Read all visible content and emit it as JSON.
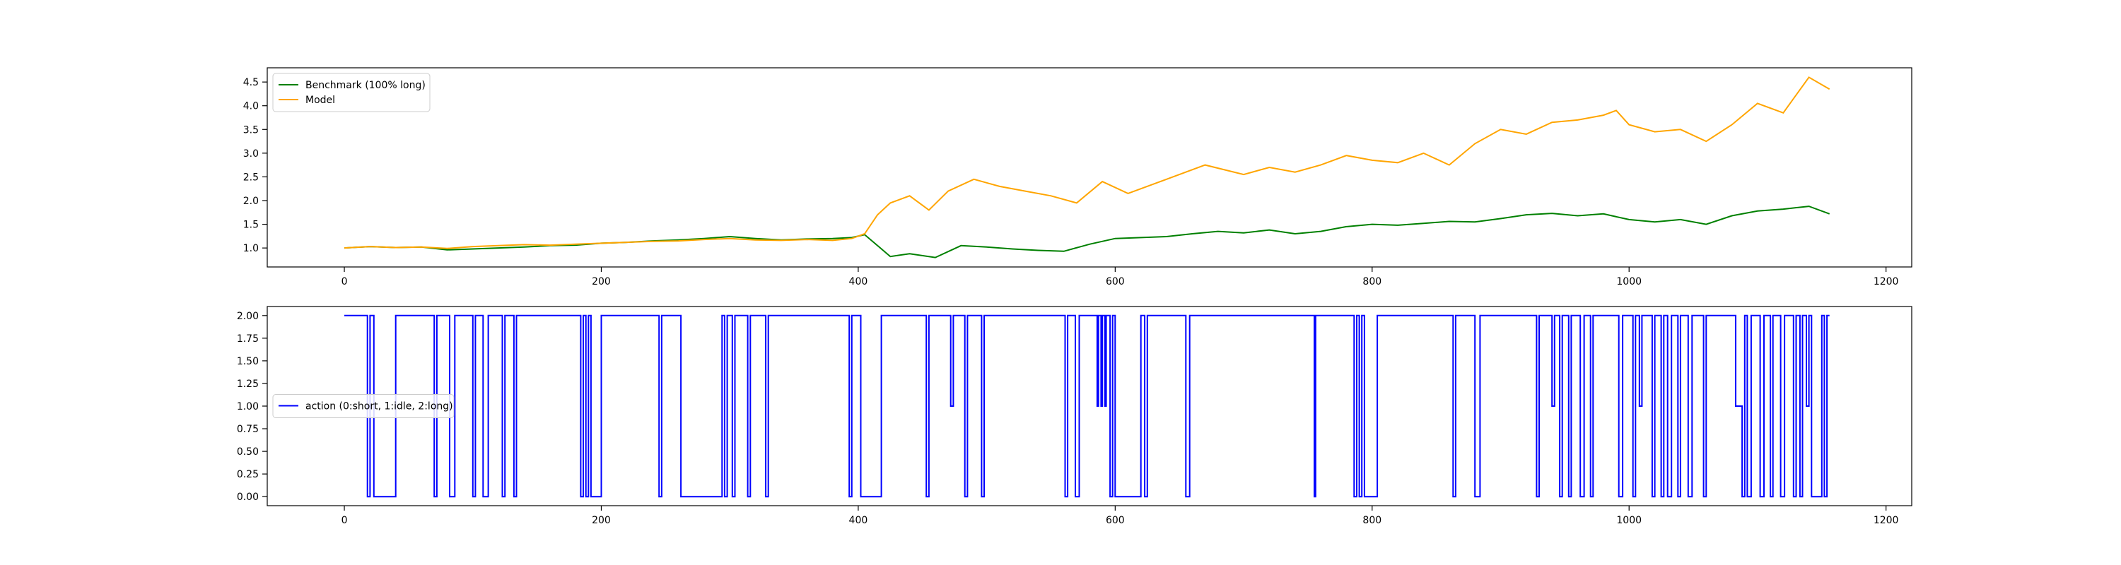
{
  "chart_data": [
    {
      "type": "line",
      "title": "",
      "xlabel": "",
      "ylabel": "",
      "xlim": [
        -60,
        1220
      ],
      "ylim": [
        0.6,
        4.8
      ],
      "xticks": [
        0,
        200,
        400,
        600,
        800,
        1000,
        1200
      ],
      "yticks": [
        1.0,
        1.5,
        2.0,
        2.5,
        3.0,
        3.5,
        4.0,
        4.5
      ],
      "xtick_labels": [
        "0",
        "200",
        "400",
        "600",
        "800",
        "1000",
        "1200"
      ],
      "ytick_labels": [
        "1.0",
        "1.5",
        "2.0",
        "2.5",
        "3.0",
        "3.5",
        "4.0",
        "4.5"
      ],
      "grid": false,
      "legend_position": "upper-left",
      "series": [
        {
          "name": "Benchmark (100% long)",
          "color": "#008000",
          "x": [
            0,
            20,
            40,
            60,
            80,
            100,
            120,
            140,
            160,
            180,
            200,
            220,
            240,
            260,
            280,
            300,
            320,
            340,
            360,
            380,
            395,
            405,
            415,
            425,
            440,
            460,
            480,
            500,
            520,
            540,
            560,
            580,
            600,
            620,
            640,
            660,
            680,
            700,
            720,
            740,
            760,
            780,
            800,
            820,
            840,
            860,
            880,
            900,
            920,
            940,
            960,
            980,
            1000,
            1020,
            1040,
            1060,
            1080,
            1100,
            1120,
            1140,
            1156
          ],
          "values": [
            1.0,
            1.03,
            1.01,
            1.02,
            0.96,
            0.98,
            1.0,
            1.02,
            1.05,
            1.06,
            1.1,
            1.12,
            1.15,
            1.17,
            1.2,
            1.24,
            1.2,
            1.17,
            1.19,
            1.2,
            1.22,
            1.28,
            1.05,
            0.82,
            0.88,
            0.8,
            1.05,
            1.02,
            0.98,
            0.95,
            0.93,
            1.08,
            1.2,
            1.22,
            1.24,
            1.3,
            1.35,
            1.32,
            1.38,
            1.3,
            1.35,
            1.45,
            1.5,
            1.48,
            1.52,
            1.56,
            1.55,
            1.62,
            1.7,
            1.73,
            1.68,
            1.72,
            1.6,
            1.55,
            1.6,
            1.5,
            1.68,
            1.78,
            1.82,
            1.88,
            1.72
          ]
        },
        {
          "name": "Model",
          "color": "#ffa500",
          "x": [
            0,
            20,
            40,
            60,
            80,
            100,
            120,
            140,
            160,
            180,
            200,
            220,
            240,
            260,
            280,
            300,
            320,
            340,
            360,
            380,
            395,
            405,
            415,
            425,
            440,
            455,
            470,
            490,
            510,
            530,
            550,
            570,
            590,
            610,
            640,
            670,
            700,
            720,
            740,
            760,
            780,
            800,
            820,
            840,
            860,
            880,
            900,
            920,
            940,
            960,
            980,
            990,
            1000,
            1020,
            1040,
            1060,
            1080,
            1100,
            1120,
            1140,
            1156
          ],
          "values": [
            1.0,
            1.03,
            1.01,
            1.02,
            0.99,
            1.03,
            1.05,
            1.07,
            1.06,
            1.08,
            1.1,
            1.12,
            1.14,
            1.15,
            1.18,
            1.2,
            1.17,
            1.16,
            1.18,
            1.16,
            1.2,
            1.3,
            1.7,
            1.95,
            2.1,
            1.8,
            2.2,
            2.45,
            2.3,
            2.2,
            2.1,
            1.95,
            2.4,
            2.15,
            2.45,
            2.75,
            2.55,
            2.7,
            2.6,
            2.75,
            2.95,
            2.85,
            2.8,
            3.0,
            2.75,
            3.2,
            3.5,
            3.4,
            3.65,
            3.7,
            3.8,
            3.9,
            3.6,
            3.45,
            3.5,
            3.25,
            3.6,
            4.05,
            3.85,
            4.6,
            4.35
          ]
        }
      ]
    },
    {
      "type": "line",
      "title": "",
      "xlabel": "",
      "ylabel": "",
      "xlim": [
        -60,
        1220
      ],
      "ylim": [
        -0.1,
        2.1
      ],
      "xticks": [
        0,
        200,
        400,
        600,
        800,
        1000,
        1200
      ],
      "yticks": [
        0.0,
        0.25,
        0.5,
        0.75,
        1.0,
        1.25,
        1.5,
        1.75,
        2.0
      ],
      "xtick_labels": [
        "0",
        "200",
        "400",
        "600",
        "800",
        "1000",
        "1200"
      ],
      "ytick_labels": [
        "0.00",
        "0.25",
        "0.50",
        "0.75",
        "1.00",
        "1.25",
        "1.50",
        "1.75",
        "2.00"
      ],
      "grid": false,
      "legend_position": "center-left",
      "step": true,
      "series": [
        {
          "name": "action (0:short, 1:idle, 2:long)",
          "color": "#0000ff",
          "segments": [
            [
              0,
              2
            ],
            [
              18,
              0
            ],
            [
              20,
              2
            ],
            [
              23,
              0
            ],
            [
              40,
              2
            ],
            [
              70,
              0
            ],
            [
              72,
              2
            ],
            [
              82,
              0
            ],
            [
              86,
              2
            ],
            [
              100,
              0
            ],
            [
              102,
              2
            ],
            [
              108,
              0
            ],
            [
              112,
              2
            ],
            [
              123,
              0
            ],
            [
              125,
              2
            ],
            [
              132,
              0
            ],
            [
              134,
              2
            ],
            [
              184,
              0
            ],
            [
              186,
              2
            ],
            [
              188,
              0
            ],
            [
              190,
              2
            ],
            [
              192,
              0
            ],
            [
              200,
              2
            ],
            [
              245,
              0
            ],
            [
              247,
              2
            ],
            [
              262,
              0
            ],
            [
              294,
              2
            ],
            [
              296,
              0
            ],
            [
              298,
              2
            ],
            [
              302,
              0
            ],
            [
              304,
              2
            ],
            [
              314,
              0
            ],
            [
              316,
              2
            ],
            [
              328,
              0
            ],
            [
              330,
              2
            ],
            [
              393,
              0
            ],
            [
              395,
              2
            ],
            [
              402,
              0
            ],
            [
              418,
              2
            ],
            [
              453,
              0
            ],
            [
              455,
              2
            ],
            [
              472,
              1
            ],
            [
              474,
              2
            ],
            [
              483,
              0
            ],
            [
              485,
              2
            ],
            [
              496,
              0
            ],
            [
              498,
              2
            ],
            [
              561,
              0
            ],
            [
              563,
              2
            ],
            [
              569,
              0
            ],
            [
              572,
              2
            ],
            [
              586,
              1
            ],
            [
              587,
              2
            ],
            [
              589,
              1
            ],
            [
              590,
              2
            ],
            [
              592,
              1
            ],
            [
              593,
              2
            ],
            [
              596,
              0
            ],
            [
              598,
              2
            ],
            [
              600,
              0
            ],
            [
              620,
              2
            ],
            [
              623,
              0
            ],
            [
              625,
              2
            ],
            [
              655,
              0
            ],
            [
              658,
              2
            ],
            [
              755,
              0
            ],
            [
              756,
              2
            ],
            [
              786,
              0
            ],
            [
              788,
              2
            ],
            [
              790,
              0
            ],
            [
              792,
              2
            ],
            [
              794,
              0
            ],
            [
              804,
              2
            ],
            [
              863,
              0
            ],
            [
              865,
              2
            ],
            [
              880,
              0
            ],
            [
              884,
              2
            ],
            [
              928,
              0
            ],
            [
              930,
              2
            ],
            [
              940,
              1
            ],
            [
              942,
              2
            ],
            [
              946,
              0
            ],
            [
              948,
              2
            ],
            [
              953,
              0
            ],
            [
              955,
              2
            ],
            [
              962,
              0
            ],
            [
              965,
              2
            ],
            [
              970,
              0
            ],
            [
              972,
              2
            ],
            [
              992,
              0
            ],
            [
              995,
              2
            ],
            [
              1003,
              0
            ],
            [
              1005,
              2
            ],
            [
              1008,
              1
            ],
            [
              1010,
              2
            ],
            [
              1018,
              0
            ],
            [
              1020,
              2
            ],
            [
              1025,
              0
            ],
            [
              1027,
              2
            ],
            [
              1030,
              0
            ],
            [
              1033,
              2
            ],
            [
              1038,
              0
            ],
            [
              1040,
              2
            ],
            [
              1046,
              0
            ],
            [
              1049,
              2
            ],
            [
              1058,
              0
            ],
            [
              1060,
              2
            ],
            [
              1083,
              1
            ],
            [
              1088,
              0
            ],
            [
              1090,
              2
            ],
            [
              1092,
              0
            ],
            [
              1095,
              2
            ],
            [
              1102,
              0
            ],
            [
              1105,
              2
            ],
            [
              1110,
              0
            ],
            [
              1112,
              2
            ],
            [
              1118,
              0
            ],
            [
              1121,
              2
            ],
            [
              1128,
              0
            ],
            [
              1130,
              2
            ],
            [
              1133,
              0
            ],
            [
              1135,
              2
            ],
            [
              1138,
              1
            ],
            [
              1140,
              2
            ],
            [
              1142,
              0
            ],
            [
              1150,
              2
            ],
            [
              1152,
              0
            ],
            [
              1154,
              2
            ],
            [
              1156,
              2
            ]
          ]
        }
      ]
    }
  ]
}
